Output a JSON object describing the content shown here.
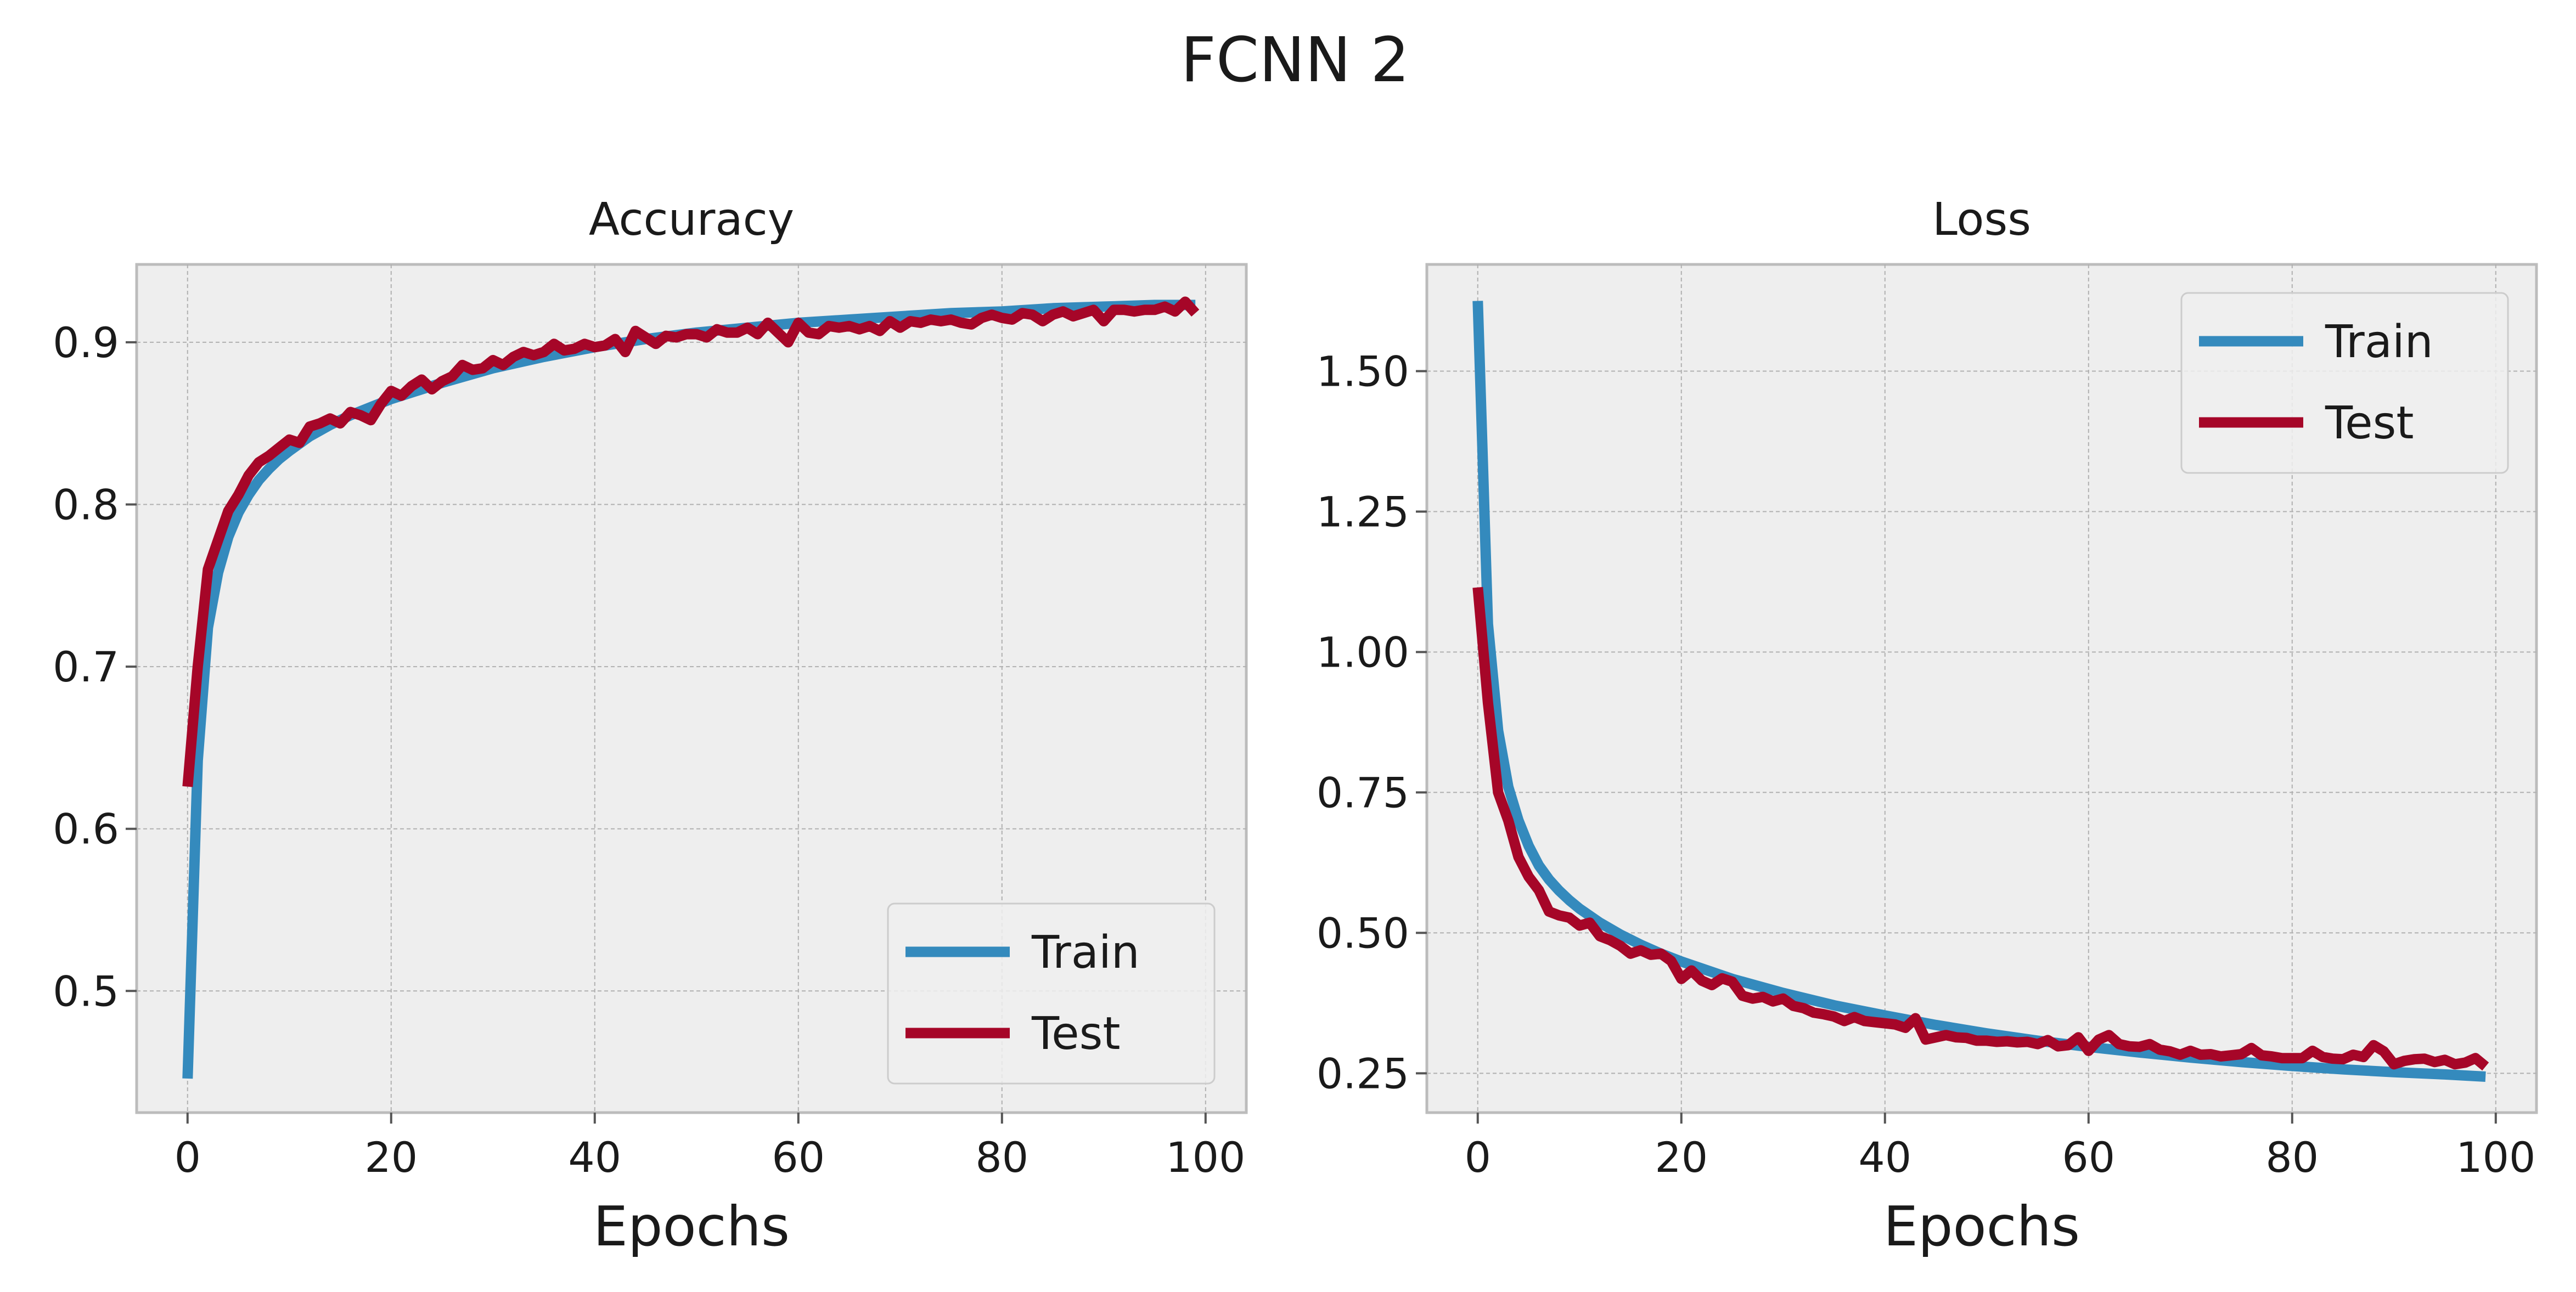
{
  "suptitle": "FCNN 2",
  "colors": {
    "train": "#348ABD",
    "test": "#A60628",
    "background": "#EEEEEE"
  },
  "chart_data": [
    {
      "type": "line",
      "title": "Accuracy",
      "xlabel": "Epochs",
      "ylabel": "",
      "xlim": [
        -5,
        104
      ],
      "ylim": [
        0.425,
        0.948
      ],
      "xticks": [
        0,
        20,
        40,
        60,
        80,
        100
      ],
      "xtick_labels": [
        "0",
        "20",
        "40",
        "60",
        "80",
        "100"
      ],
      "yticks": [
        0.5,
        0.6,
        0.7,
        0.8,
        0.9
      ],
      "ytick_labels": [
        "0.5",
        "0.6",
        "0.7",
        "0.8",
        "0.9"
      ],
      "grid": true,
      "legend": {
        "position": "lower-right",
        "entries": [
          "Train",
          "Test"
        ]
      },
      "series": [
        {
          "name": "Train",
          "color": "#348ABD",
          "points": [
            [
              0,
              0.446
            ],
            [
              1,
              0.642
            ],
            [
              2,
              0.724
            ],
            [
              3,
              0.758
            ],
            [
              4,
              0.78
            ],
            [
              5,
              0.795
            ],
            [
              6,
              0.806
            ],
            [
              7,
              0.815
            ],
            [
              8,
              0.822
            ],
            [
              9,
              0.828
            ],
            [
              10,
              0.833
            ],
            [
              12,
              0.842
            ],
            [
              14,
              0.849
            ],
            [
              16,
              0.855
            ],
            [
              18,
              0.86
            ],
            [
              20,
              0.865
            ],
            [
              25,
              0.875
            ],
            [
              30,
              0.884
            ],
            [
              35,
              0.891
            ],
            [
              40,
              0.897
            ],
            [
              45,
              0.902
            ],
            [
              50,
              0.906
            ],
            [
              55,
              0.909
            ],
            [
              60,
              0.912
            ],
            [
              65,
              0.914
            ],
            [
              70,
              0.916
            ],
            [
              75,
              0.918
            ],
            [
              80,
              0.919
            ],
            [
              85,
              0.921
            ],
            [
              90,
              0.922
            ],
            [
              95,
              0.923
            ],
            [
              99,
              0.923
            ]
          ]
        },
        {
          "name": "Test",
          "color": "#A60628",
          "points": [
            [
              0,
              0.626
            ],
            [
              1,
              0.7
            ],
            [
              2,
              0.76
            ],
            [
              3,
              0.778
            ],
            [
              4,
              0.796
            ],
            [
              5,
              0.806
            ],
            [
              6,
              0.818
            ],
            [
              7,
              0.826
            ],
            [
              8,
              0.83
            ],
            [
              9,
              0.835
            ],
            [
              10,
              0.84
            ],
            [
              11,
              0.838
            ],
            [
              12,
              0.848
            ],
            [
              13,
              0.85
            ],
            [
              14,
              0.853
            ],
            [
              15,
              0.85
            ],
            [
              16,
              0.857
            ],
            [
              17,
              0.855
            ],
            [
              18,
              0.852
            ],
            [
              19,
              0.862
            ],
            [
              20,
              0.87
            ],
            [
              21,
              0.867
            ],
            [
              22,
              0.873
            ],
            [
              23,
              0.877
            ],
            [
              24,
              0.871
            ],
            [
              25,
              0.876
            ],
            [
              26,
              0.879
            ],
            [
              27,
              0.886
            ],
            [
              28,
              0.883
            ],
            [
              29,
              0.884
            ],
            [
              30,
              0.889
            ],
            [
              31,
              0.886
            ],
            [
              32,
              0.891
            ],
            [
              33,
              0.894
            ],
            [
              34,
              0.892
            ],
            [
              35,
              0.894
            ],
            [
              36,
              0.899
            ],
            [
              37,
              0.895
            ],
            [
              38,
              0.896
            ],
            [
              39,
              0.899
            ],
            [
              40,
              0.897
            ],
            [
              41,
              0.898
            ],
            [
              42,
              0.902
            ],
            [
              43,
              0.894
            ],
            [
              44,
              0.907
            ],
            [
              45,
              0.903
            ],
            [
              46,
              0.899
            ],
            [
              47,
              0.904
            ],
            [
              48,
              0.903
            ],
            [
              49,
              0.905
            ],
            [
              50,
              0.905
            ],
            [
              51,
              0.903
            ],
            [
              52,
              0.908
            ],
            [
              53,
              0.906
            ],
            [
              54,
              0.906
            ],
            [
              55,
              0.909
            ],
            [
              56,
              0.905
            ],
            [
              57,
              0.912
            ],
            [
              58,
              0.906
            ],
            [
              59,
              0.9
            ],
            [
              60,
              0.912
            ],
            [
              61,
              0.906
            ],
            [
              62,
              0.905
            ],
            [
              63,
              0.91
            ],
            [
              64,
              0.909
            ],
            [
              65,
              0.91
            ],
            [
              66,
              0.908
            ],
            [
              67,
              0.91
            ],
            [
              68,
              0.907
            ],
            [
              69,
              0.913
            ],
            [
              70,
              0.909
            ],
            [
              71,
              0.913
            ],
            [
              72,
              0.912
            ],
            [
              73,
              0.914
            ],
            [
              74,
              0.913
            ],
            [
              75,
              0.914
            ],
            [
              76,
              0.912
            ],
            [
              77,
              0.911
            ],
            [
              78,
              0.915
            ],
            [
              79,
              0.917
            ],
            [
              80,
              0.915
            ],
            [
              81,
              0.914
            ],
            [
              82,
              0.918
            ],
            [
              83,
              0.917
            ],
            [
              84,
              0.913
            ],
            [
              85,
              0.917
            ],
            [
              86,
              0.919
            ],
            [
              87,
              0.916
            ],
            [
              88,
              0.918
            ],
            [
              89,
              0.92
            ],
            [
              90,
              0.913
            ],
            [
              91,
              0.92
            ],
            [
              92,
              0.92
            ],
            [
              93,
              0.919
            ],
            [
              94,
              0.92
            ],
            [
              95,
              0.92
            ],
            [
              96,
              0.922
            ],
            [
              97,
              0.919
            ],
            [
              98,
              0.925
            ],
            [
              99,
              0.918
            ]
          ]
        }
      ]
    },
    {
      "type": "line",
      "title": "Loss",
      "xlabel": "Epochs",
      "ylabel": "",
      "xlim": [
        -5,
        104
      ],
      "ylim": [
        0.18,
        1.69
      ],
      "xticks": [
        0,
        20,
        40,
        60,
        80,
        100
      ],
      "xtick_labels": [
        "0",
        "20",
        "40",
        "60",
        "80",
        "100"
      ],
      "yticks": [
        0.25,
        0.5,
        0.75,
        1.0,
        1.25,
        1.5
      ],
      "ytick_labels": [
        "0.25",
        "0.50",
        "0.75",
        "1.00",
        "1.25",
        "1.50"
      ],
      "grid": true,
      "legend": {
        "position": "upper-right",
        "entries": [
          "Train",
          "Test"
        ]
      },
      "series": [
        {
          "name": "Train",
          "color": "#348ABD",
          "points": [
            [
              0,
              1.625
            ],
            [
              1,
              1.05
            ],
            [
              2,
              0.86
            ],
            [
              3,
              0.76
            ],
            [
              4,
              0.7
            ],
            [
              5,
              0.655
            ],
            [
              6,
              0.62
            ],
            [
              7,
              0.595
            ],
            [
              8,
              0.575
            ],
            [
              9,
              0.558
            ],
            [
              10,
              0.543
            ],
            [
              12,
              0.518
            ],
            [
              14,
              0.497
            ],
            [
              16,
              0.479
            ],
            [
              18,
              0.463
            ],
            [
              20,
              0.449
            ],
            [
              25,
              0.418
            ],
            [
              30,
              0.393
            ],
            [
              35,
              0.371
            ],
            [
              40,
              0.353
            ],
            [
              45,
              0.336
            ],
            [
              50,
              0.321
            ],
            [
              55,
              0.308
            ],
            [
              60,
              0.297
            ],
            [
              65,
              0.287
            ],
            [
              70,
              0.278
            ],
            [
              75,
              0.27
            ],
            [
              80,
              0.263
            ],
            [
              85,
              0.257
            ],
            [
              90,
              0.252
            ],
            [
              95,
              0.248
            ],
            [
              99,
              0.244
            ]
          ]
        },
        {
          "name": "Test",
          "color": "#A60628",
          "points": [
            [
              0,
              1.115
            ],
            [
              1,
              0.91
            ],
            [
              2,
              0.75
            ],
            [
              3,
              0.7
            ],
            [
              4,
              0.635
            ],
            [
              5,
              0.6
            ],
            [
              6,
              0.576
            ],
            [
              7,
              0.538
            ],
            [
              8,
              0.531
            ],
            [
              9,
              0.527
            ],
            [
              10,
              0.513
            ],
            [
              11,
              0.518
            ],
            [
              12,
              0.494
            ],
            [
              13,
              0.487
            ],
            [
              14,
              0.477
            ],
            [
              15,
              0.463
            ],
            [
              16,
              0.469
            ],
            [
              17,
              0.461
            ],
            [
              18,
              0.463
            ],
            [
              19,
              0.45
            ],
            [
              20,
              0.418
            ],
            [
              21,
              0.433
            ],
            [
              22,
              0.415
            ],
            [
              23,
              0.407
            ],
            [
              24,
              0.419
            ],
            [
              25,
              0.413
            ],
            [
              26,
              0.388
            ],
            [
              27,
              0.383
            ],
            [
              28,
              0.386
            ],
            [
              29,
              0.378
            ],
            [
              30,
              0.383
            ],
            [
              31,
              0.37
            ],
            [
              32,
              0.366
            ],
            [
              33,
              0.358
            ],
            [
              34,
              0.355
            ],
            [
              35,
              0.351
            ],
            [
              36,
              0.343
            ],
            [
              37,
              0.35
            ],
            [
              38,
              0.343
            ],
            [
              39,
              0.341
            ],
            [
              40,
              0.339
            ],
            [
              41,
              0.337
            ],
            [
              42,
              0.331
            ],
            [
              43,
              0.348
            ],
            [
              44,
              0.31
            ],
            [
              45,
              0.314
            ],
            [
              46,
              0.318
            ],
            [
              47,
              0.314
            ],
            [
              48,
              0.313
            ],
            [
              49,
              0.308
            ],
            [
              50,
              0.308
            ],
            [
              51,
              0.306
            ],
            [
              52,
              0.307
            ],
            [
              53,
              0.305
            ],
            [
              54,
              0.306
            ],
            [
              55,
              0.302
            ],
            [
              56,
              0.309
            ],
            [
              57,
              0.298
            ],
            [
              58,
              0.3
            ],
            [
              59,
              0.314
            ],
            [
              60,
              0.29
            ],
            [
              61,
              0.31
            ],
            [
              62,
              0.318
            ],
            [
              63,
              0.302
            ],
            [
              64,
              0.298
            ],
            [
              65,
              0.297
            ],
            [
              66,
              0.302
            ],
            [
              67,
              0.292
            ],
            [
              68,
              0.289
            ],
            [
              69,
              0.283
            ],
            [
              70,
              0.29
            ],
            [
              71,
              0.283
            ],
            [
              72,
              0.284
            ],
            [
              73,
              0.28
            ],
            [
              74,
              0.282
            ],
            [
              75,
              0.284
            ],
            [
              76,
              0.295
            ],
            [
              77,
              0.282
            ],
            [
              78,
              0.28
            ],
            [
              79,
              0.277
            ],
            [
              80,
              0.277
            ],
            [
              81,
              0.277
            ],
            [
              82,
              0.29
            ],
            [
              83,
              0.279
            ],
            [
              84,
              0.276
            ],
            [
              85,
              0.275
            ],
            [
              86,
              0.283
            ],
            [
              87,
              0.279
            ],
            [
              88,
              0.3
            ],
            [
              89,
              0.289
            ],
            [
              90,
              0.266
            ],
            [
              91,
              0.272
            ],
            [
              92,
              0.275
            ],
            [
              93,
              0.276
            ],
            [
              94,
              0.27
            ],
            [
              95,
              0.274
            ],
            [
              96,
              0.266
            ],
            [
              97,
              0.269
            ],
            [
              98,
              0.277
            ],
            [
              99,
              0.262
            ]
          ]
        }
      ]
    }
  ]
}
